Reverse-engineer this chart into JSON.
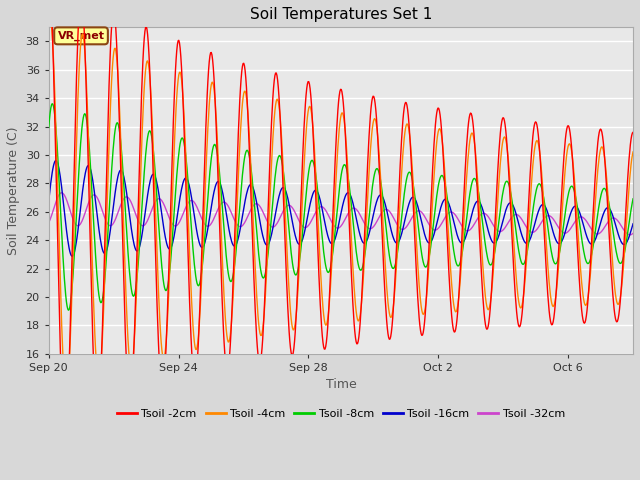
{
  "title": "Soil Temperatures Set 1",
  "xlabel": "Time",
  "ylabel": "Soil Temperature (C)",
  "ylim": [
    16,
    39
  ],
  "yticks": [
    16,
    18,
    20,
    22,
    24,
    26,
    28,
    30,
    32,
    34,
    36,
    38
  ],
  "fig_bg_color": "#d8d8d8",
  "plot_bg_color": "#e8e8e8",
  "grid_color": "#ffffff",
  "annotation_text": "VR_met",
  "annotation_bg": "#ffff99",
  "annotation_border": "#8B4513",
  "annotation_text_color": "#8B0000",
  "series_colors": {
    "Tsoil -2cm": "#ff0000",
    "Tsoil -4cm": "#ff8800",
    "Tsoil -8cm": "#00cc00",
    "Tsoil -16cm": "#0000cc",
    "Tsoil -32cm": "#cc44cc"
  },
  "legend_labels": [
    "Tsoil -2cm",
    "Tsoil -4cm",
    "Tsoil -8cm",
    "Tsoil -16cm",
    "Tsoil -32cm"
  ],
  "xtick_labels": [
    "Sep 20",
    "Sep 24",
    "Sep 28",
    "Oct 2",
    "Oct 6"
  ],
  "xtick_positions": [
    0,
    4,
    8,
    12,
    16
  ],
  "n_days": 18,
  "samples_per_day": 48
}
